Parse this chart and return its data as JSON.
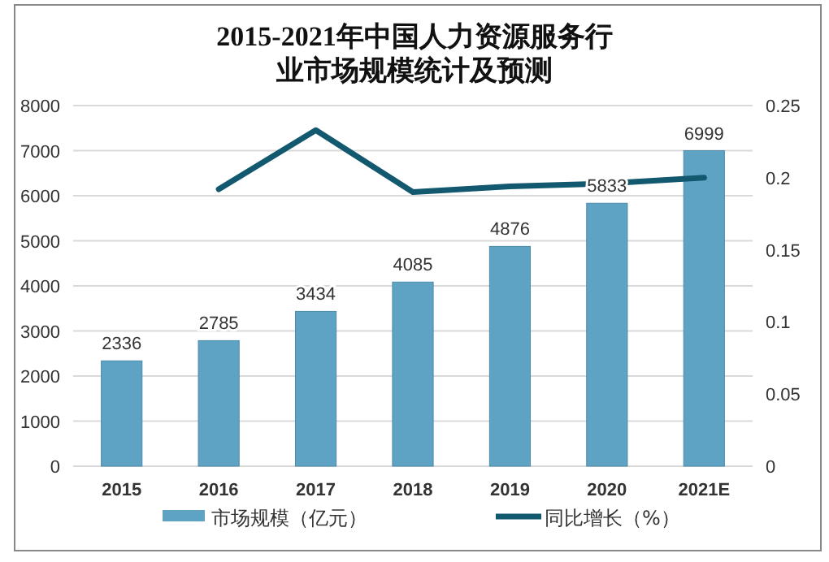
{
  "chart_data": {
    "type": "bar",
    "title": "2015-2021年中国人力资源服务行业市场规模统计及预测",
    "categories": [
      "2015",
      "2016",
      "2017",
      "2018",
      "2019",
      "2020",
      "2021E"
    ],
    "series": [
      {
        "name": "市场规模（亿元）",
        "color": "#5fa3c4",
        "values": [
          2336,
          2785,
          3434,
          4085,
          4876,
          5833,
          6999
        ],
        "value_labels": [
          "2336",
          "2785",
          "3434",
          "4085",
          "4876",
          "5833",
          "6999"
        ]
      },
      {
        "name": "同比增长（%）",
        "type": "line",
        "axis": "y2",
        "color": "#12586e",
        "values": [
          null,
          0.192,
          0.233,
          0.19,
          0.194,
          0.196,
          0.2
        ]
      }
    ],
    "ylim": [
      0,
      8000
    ],
    "yticks": [
      0,
      1000,
      2000,
      3000,
      4000,
      5000,
      6000,
      7000,
      8000
    ],
    "y2lim": [
      0,
      0.25
    ],
    "y2ticks": [
      0,
      0.05,
      0.1,
      0.15,
      0.2,
      0.25
    ],
    "grid": "y",
    "legend": "bottom",
    "marker": "none",
    "line_style": "solid"
  }
}
